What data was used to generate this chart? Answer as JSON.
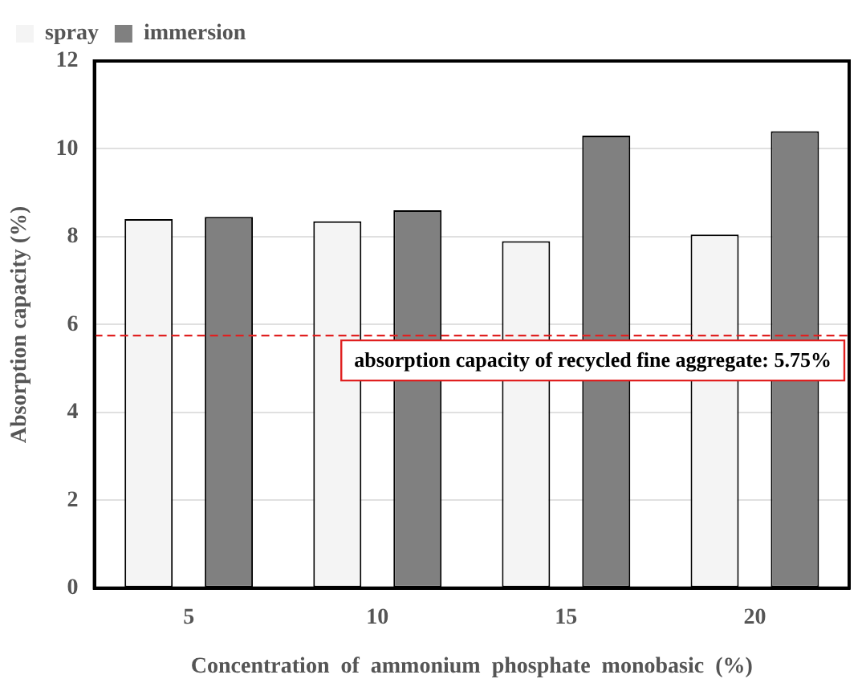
{
  "chart_data": {
    "type": "bar",
    "xlabel": "Concentration  of  ammonium  phosphate  monobasic  (%)",
    "ylabel": "Absorption capacity (%)",
    "categories": [
      "5",
      "10",
      "15",
      "20"
    ],
    "series": [
      {
        "name": "spray",
        "color": "#f4f4f4",
        "values": [
          8.4,
          8.35,
          7.9,
          8.05
        ]
      },
      {
        "name": "immersion",
        "color": "#808080",
        "values": [
          8.45,
          8.6,
          10.3,
          10.4
        ]
      }
    ],
    "ylim": [
      0,
      12
    ],
    "yticks": [
      0,
      2,
      4,
      6,
      8,
      10,
      12
    ],
    "grid": "y",
    "legend": "top left",
    "ref_lines": [
      {
        "axis": "y",
        "value": 5.75,
        "label": "absorption capacity of recycled fine aggregate: 5.75%",
        "color": "#e02020",
        "line_style": "dashed"
      }
    ]
  }
}
